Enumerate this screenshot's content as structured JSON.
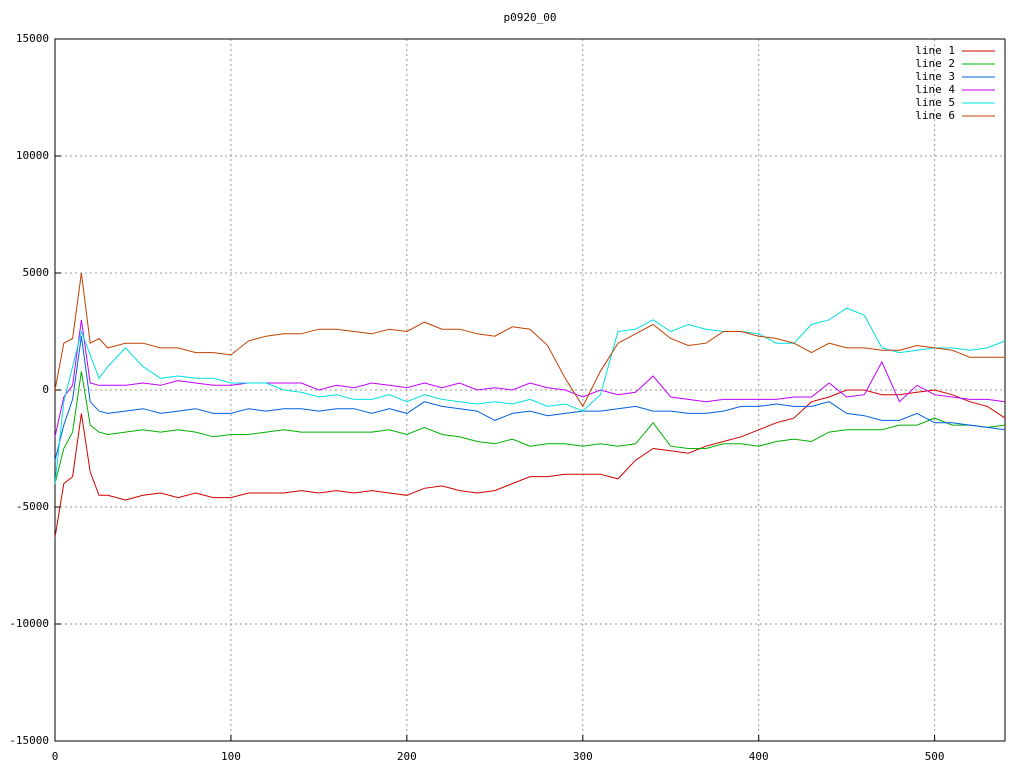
{
  "chart_data": {
    "type": "line",
    "title": "p0920_00",
    "x": [
      0,
      5,
      10,
      15,
      20,
      25,
      30,
      40,
      50,
      60,
      70,
      80,
      90,
      100,
      110,
      120,
      130,
      140,
      150,
      160,
      170,
      180,
      190,
      200,
      210,
      220,
      230,
      240,
      250,
      260,
      270,
      280,
      290,
      300,
      310,
      320,
      330,
      340,
      350,
      360,
      370,
      380,
      390,
      400,
      410,
      420,
      430,
      440,
      450,
      460,
      470,
      480,
      490,
      500,
      510,
      520,
      530,
      540
    ],
    "series": [
      {
        "name": "line 1",
        "color": "#d00000",
        "values": [
          -6300,
          -4000,
          -3700,
          -1000,
          -3500,
          -4500,
          -4500,
          -4700,
          -4500,
          -4400,
          -4600,
          -4400,
          -4600,
          -4600,
          -4400,
          -4400,
          -4400,
          -4300,
          -4400,
          -4300,
          -4400,
          -4300,
          -4400,
          -4500,
          -4200,
          -4100,
          -4300,
          -4400,
          -4300,
          -4000,
          -3700,
          -3700,
          -3600,
          -3600,
          -3600,
          -3800,
          -3000,
          -2500,
          -2600,
          -2700,
          -2400,
          -2200,
          -2000,
          -1700,
          -1400,
          -1200,
          -500,
          -300,
          0,
          0,
          -200,
          -200,
          -100,
          0,
          -200,
          -500,
          -700,
          -1200
        ]
      },
      {
        "name": "line 2",
        "color": "#00b000",
        "values": [
          -4000,
          -2500,
          -1800,
          800,
          -1500,
          -1800,
          -1900,
          -1800,
          -1700,
          -1800,
          -1700,
          -1800,
          -2000,
          -1900,
          -1900,
          -1800,
          -1700,
          -1800,
          -1800,
          -1800,
          -1800,
          -1800,
          -1700,
          -1900,
          -1600,
          -1900,
          -2000,
          -2200,
          -2300,
          -2100,
          -2400,
          -2300,
          -2300,
          -2400,
          -2300,
          -2400,
          -2300,
          -1400,
          -2400,
          -2500,
          -2500,
          -2300,
          -2300,
          -2400,
          -2200,
          -2100,
          -2200,
          -1800,
          -1700,
          -1700,
          -1700,
          -1500,
          -1500,
          -1200,
          -1500,
          -1500,
          -1600,
          -1500
        ]
      },
      {
        "name": "line 3",
        "color": "#0060e0",
        "values": [
          -3000,
          -1500,
          -400,
          2300,
          -500,
          -900,
          -1000,
          -900,
          -800,
          -1000,
          -900,
          -800,
          -1000,
          -1000,
          -800,
          -900,
          -800,
          -800,
          -900,
          -800,
          -800,
          -1000,
          -800,
          -1000,
          -500,
          -700,
          -800,
          -900,
          -1300,
          -1000,
          -900,
          -1100,
          -1000,
          -900,
          -900,
          -800,
          -700,
          -900,
          -900,
          -1000,
          -1000,
          -900,
          -700,
          -700,
          -600,
          -700,
          -700,
          -500,
          -1000,
          -1100,
          -1300,
          -1300,
          -1000,
          -1400,
          -1400,
          -1500,
          -1600,
          -1700
        ]
      },
      {
        "name": "line 4",
        "color": "#c000ff",
        "values": [
          -2000,
          -300,
          200,
          3000,
          300,
          200,
          200,
          200,
          300,
          200,
          400,
          300,
          200,
          200,
          300,
          300,
          300,
          300,
          0,
          200,
          100,
          300,
          200,
          100,
          300,
          100,
          300,
          0,
          100,
          0,
          300,
          100,
          0,
          -300,
          0,
          -200,
          -100,
          600,
          -300,
          -400,
          -500,
          -400,
          -400,
          -400,
          -400,
          -300,
          -300,
          300,
          -300,
          -200,
          1200,
          -500,
          200,
          -200,
          -300,
          -400,
          -400,
          -500
        ]
      },
      {
        "name": "line 5",
        "color": "#00e0e0",
        "values": [
          -4000,
          -500,
          1000,
          2500,
          1500,
          500,
          1000,
          1800,
          1000,
          500,
          600,
          500,
          500,
          300,
          300,
          300,
          0,
          -100,
          -300,
          -200,
          -400,
          -400,
          -200,
          -500,
          -200,
          -400,
          -500,
          -600,
          -500,
          -600,
          -400,
          -700,
          -600,
          -900,
          -200,
          2500,
          2600,
          3000,
          2500,
          2800,
          2600,
          2500,
          2500,
          2400,
          2000,
          2000,
          2800,
          3000,
          3500,
          3200,
          1800,
          1600,
          1700,
          1800,
          1800,
          1700,
          1800,
          2100
        ]
      },
      {
        "name": "line 6",
        "color": "#c04000",
        "values": [
          0,
          2000,
          2200,
          5000,
          2000,
          2200,
          1800,
          2000,
          2000,
          1800,
          1800,
          1600,
          1600,
          1500,
          2100,
          2300,
          2400,
          2400,
          2600,
          2600,
          2500,
          2400,
          2600,
          2500,
          2900,
          2600,
          2600,
          2400,
          2300,
          2700,
          2600,
          1900,
          500,
          -700,
          800,
          2000,
          2400,
          2800,
          2200,
          1900,
          2000,
          2500,
          2500,
          2300,
          2200,
          2000,
          1600,
          2000,
          1800,
          1800,
          1700,
          1700,
          1900,
          1800,
          1700,
          1400,
          1400,
          1400
        ]
      }
    ],
    "xlim": [
      0,
      540
    ],
    "xticks": [
      0,
      100,
      200,
      300,
      400,
      500
    ],
    "ylim": [
      -15000,
      15000
    ],
    "yticks": [
      -15000,
      -10000,
      -5000,
      0,
      5000,
      10000,
      15000
    ],
    "grid": true,
    "legend": "top-right"
  }
}
